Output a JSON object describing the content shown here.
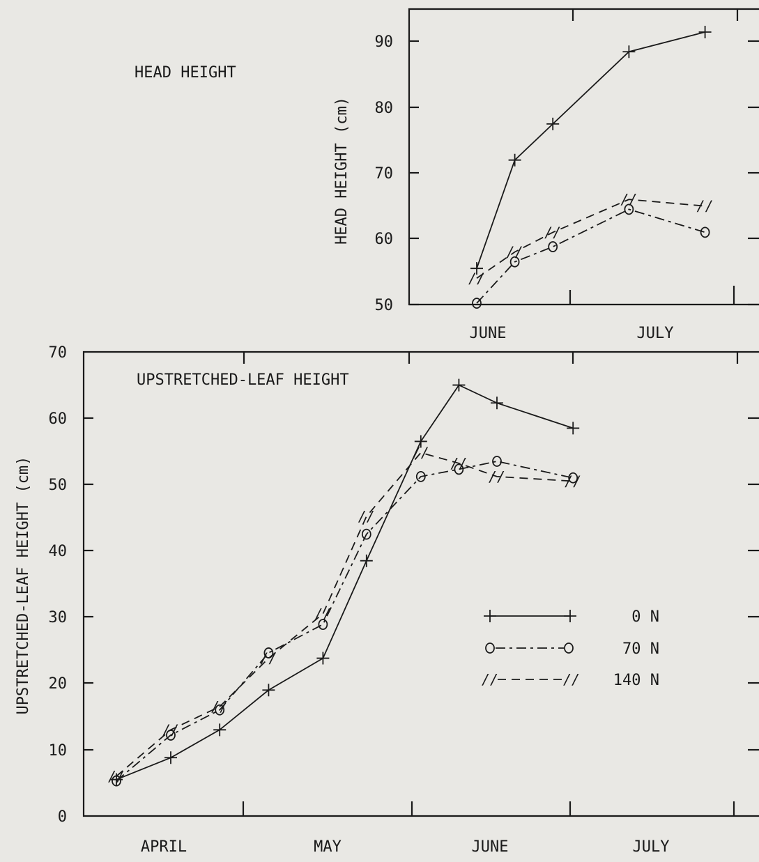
{
  "chart_data": [
    {
      "id": "head",
      "type": "line",
      "title": "HEAD HEIGHT",
      "ylabel": "HEAD HEIGHT (cm)",
      "xlabel": "",
      "ylim": [
        50,
        95
      ],
      "yticks": [
        50,
        60,
        70,
        80,
        90
      ],
      "month_labels": [
        "JUNE",
        "JULY"
      ],
      "grid": false,
      "series": [
        {
          "name": "0 N",
          "marker": "+",
          "dash": "solid",
          "points": [
            [
              "Jun 1",
              55.5
            ],
            [
              "Jun 8",
              72
            ],
            [
              "Jun 15",
              77.5
            ],
            [
              "Jun 29",
              88.5
            ],
            [
              "Jul 13",
              91.5
            ]
          ]
        },
        {
          "name": "70 N",
          "marker": "o",
          "dash": "dashdot",
          "points": [
            [
              "Jun 1",
              50.2
            ],
            [
              "Jun 8",
              56.5
            ],
            [
              "Jun 15",
              58.8
            ],
            [
              "Jun 29",
              64.5
            ],
            [
              "Jul 13",
              61
            ]
          ]
        },
        {
          "name": "140 N",
          "marker": "//",
          "dash": "dashed",
          "points": [
            [
              "Jun 1",
              54
            ],
            [
              "Jun 8",
              58
            ],
            [
              "Jun 15",
              61
            ],
            [
              "Jun 29",
              66
            ],
            [
              "Jul 13",
              65
            ]
          ]
        }
      ]
    },
    {
      "id": "leaf",
      "type": "line",
      "title": "UPSTRETCHED-LEAF HEIGHT",
      "ylabel": "UPSTRETCHED-LEAF HEIGHT (cm)",
      "xlabel": "",
      "ylim": [
        0,
        70
      ],
      "yticks": [
        0,
        10,
        20,
        30,
        40,
        50,
        60,
        70
      ],
      "month_labels": [
        "APRIL",
        "MAY",
        "JUNE",
        "JULY"
      ],
      "grid": false,
      "legend": {
        "position": "lower-right",
        "entries": [
          {
            "series": "0 N",
            "label": "0 N"
          },
          {
            "series": "70 N",
            "label": "70 N"
          },
          {
            "series": "140 N",
            "label": "140 N"
          }
        ]
      },
      "series": [
        {
          "name": "0 N",
          "marker": "+",
          "dash": "solid",
          "points": [
            [
              "Apr 6",
              5.5
            ],
            [
              "Apr 16",
              8.8
            ],
            [
              "Apr 25",
              13
            ],
            [
              "May 4",
              19
            ],
            [
              "May 14",
              23.8
            ],
            [
              "May 22",
              38.5
            ],
            [
              "Jun 1",
              56.5
            ],
            [
              "Jun 8",
              65
            ],
            [
              "Jun 15",
              62.3
            ],
            [
              "Jun 29",
              58.5
            ]
          ]
        },
        {
          "name": "70 N",
          "marker": "o",
          "dash": "dashdot",
          "points": [
            [
              "Apr 6",
              5.3
            ],
            [
              "Apr 16",
              12.2
            ],
            [
              "Apr 25",
              16
            ],
            [
              "May 4",
              24.6
            ],
            [
              "May 14",
              28.9
            ],
            [
              "May 22",
              42.5
            ],
            [
              "Jun 1",
              51.2
            ],
            [
              "Jun 8",
              52.3
            ],
            [
              "Jun 15",
              53.5
            ],
            [
              "Jun 29",
              51
            ]
          ]
        },
        {
          "name": "140 N",
          "marker": "//",
          "dash": "dashed",
          "points": [
            [
              "Apr 6",
              6
            ],
            [
              "Apr 16",
              13
            ],
            [
              "Apr 25",
              16.5
            ],
            [
              "May 4",
              23.8
            ],
            [
              "May 14",
              30.5
            ],
            [
              "May 22",
              45.2
            ],
            [
              "Jun 1",
              54.8
            ],
            [
              "Jun 8",
              53.2
            ],
            [
              "Jun 15",
              51.2
            ],
            [
              "Jun 29",
              50.5
            ]
          ]
        }
      ]
    }
  ]
}
